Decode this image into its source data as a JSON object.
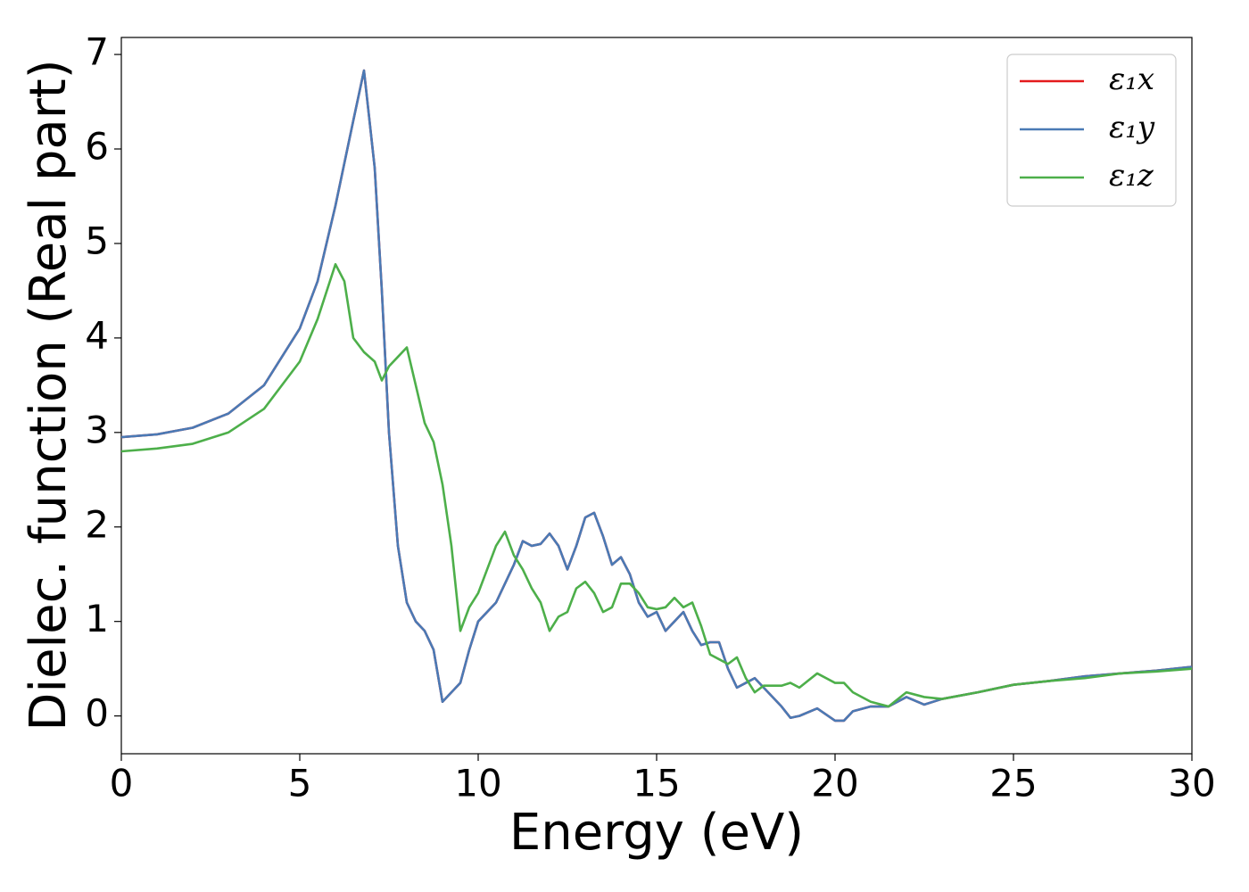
{
  "chart_data": {
    "type": "line",
    "xlabel": "Energy (eV)",
    "ylabel": "Dielec. function (Real part)",
    "x": [
      0,
      1,
      2,
      3,
      4,
      5,
      5.5,
      6,
      6.25,
      6.5,
      6.8,
      7.1,
      7.3,
      7.5,
      7.75,
      8,
      8.25,
      8.5,
      8.75,
      9,
      9.25,
      9.5,
      9.75,
      10,
      10.5,
      10.75,
      11,
      11.25,
      11.5,
      11.75,
      12,
      12.25,
      12.5,
      12.75,
      13,
      13.25,
      13.5,
      13.75,
      14,
      14.25,
      14.5,
      14.75,
      15,
      15.25,
      15.5,
      15.75,
      16,
      16.25,
      16.5,
      16.75,
      17,
      17.25,
      17.5,
      17.75,
      18,
      18.5,
      18.75,
      19,
      19.5,
      20,
      20.25,
      20.5,
      21,
      21.5,
      22,
      22.5,
      23,
      24,
      25,
      26,
      27,
      28,
      29,
      30
    ],
    "series": [
      {
        "name": "ε₁x",
        "color": "#e41a1c",
        "values": [
          2.95,
          2.98,
          3.05,
          3.2,
          3.5,
          4.1,
          4.6,
          5.4,
          5.85,
          6.3,
          6.83,
          5.8,
          4.5,
          3.0,
          1.8,
          1.2,
          1.0,
          0.9,
          0.7,
          0.15,
          0.25,
          0.35,
          0.7,
          1.0,
          1.2,
          1.4,
          1.6,
          1.85,
          1.8,
          1.82,
          1.93,
          1.8,
          1.55,
          1.8,
          2.1,
          2.15,
          1.9,
          1.6,
          1.68,
          1.5,
          1.2,
          1.05,
          1.1,
          0.9,
          1.0,
          1.1,
          0.9,
          0.75,
          0.78,
          0.78,
          0.5,
          0.3,
          0.35,
          0.4,
          0.3,
          0.1,
          -0.02,
          0.0,
          0.08,
          -0.05,
          -0.05,
          0.05,
          0.1,
          0.1,
          0.2,
          0.12,
          0.18,
          0.25,
          0.33,
          0.37,
          0.42,
          0.45,
          0.48,
          0.52
        ]
      },
      {
        "name": "ε₁y",
        "color": "#4a7ab5",
        "values": [
          2.95,
          2.98,
          3.05,
          3.2,
          3.5,
          4.1,
          4.6,
          5.4,
          5.85,
          6.3,
          6.83,
          5.8,
          4.5,
          3.0,
          1.8,
          1.2,
          1.0,
          0.9,
          0.7,
          0.15,
          0.25,
          0.35,
          0.7,
          1.0,
          1.2,
          1.4,
          1.6,
          1.85,
          1.8,
          1.82,
          1.93,
          1.8,
          1.55,
          1.8,
          2.1,
          2.15,
          1.9,
          1.6,
          1.68,
          1.5,
          1.2,
          1.05,
          1.1,
          0.9,
          1.0,
          1.1,
          0.9,
          0.75,
          0.78,
          0.78,
          0.5,
          0.3,
          0.35,
          0.4,
          0.3,
          0.1,
          -0.02,
          0.0,
          0.08,
          -0.05,
          -0.05,
          0.05,
          0.1,
          0.1,
          0.2,
          0.12,
          0.18,
          0.25,
          0.33,
          0.37,
          0.42,
          0.45,
          0.48,
          0.52
        ]
      },
      {
        "name": "ε₁z",
        "color": "#4daf4a",
        "values": [
          2.8,
          2.83,
          2.88,
          3.0,
          3.25,
          3.75,
          4.2,
          4.78,
          4.6,
          4.0,
          3.85,
          3.75,
          3.55,
          3.7,
          3.8,
          3.9,
          3.5,
          3.1,
          2.9,
          2.45,
          1.8,
          0.9,
          1.15,
          1.3,
          1.8,
          1.95,
          1.7,
          1.55,
          1.35,
          1.2,
          0.9,
          1.05,
          1.1,
          1.35,
          1.42,
          1.3,
          1.1,
          1.15,
          1.4,
          1.4,
          1.3,
          1.15,
          1.13,
          1.15,
          1.25,
          1.15,
          1.2,
          0.95,
          0.65,
          0.6,
          0.55,
          0.62,
          0.4,
          0.25,
          0.32,
          0.32,
          0.35,
          0.3,
          0.45,
          0.35,
          0.35,
          0.25,
          0.15,
          0.1,
          0.25,
          0.2,
          0.18,
          0.25,
          0.33,
          0.37,
          0.4,
          0.45,
          0.47,
          0.5
        ]
      }
    ],
    "xlim": [
      0,
      30
    ],
    "xticks": [
      0,
      5,
      10,
      15,
      20,
      25,
      30
    ],
    "ylim": [
      -0.4,
      7.18
    ],
    "yticks": [
      0,
      1,
      2,
      3,
      4,
      5,
      6,
      7
    ],
    "legend": "upper right",
    "grid": false
  }
}
